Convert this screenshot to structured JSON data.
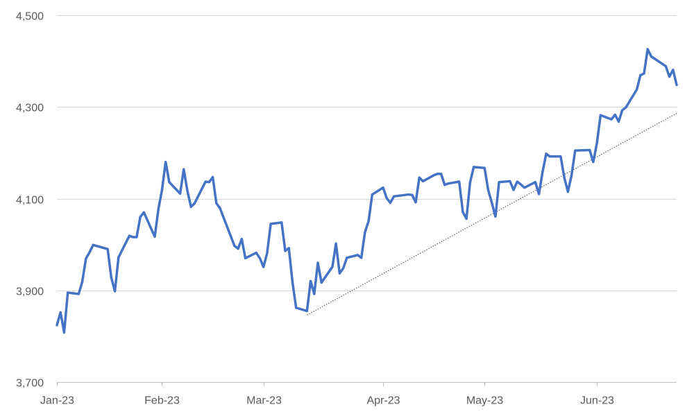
{
  "chart_data": {
    "type": "line",
    "title": "",
    "xlabel": "",
    "ylabel": "",
    "ylim": [
      3700,
      4500
    ],
    "yticks": [
      3700,
      3900,
      4100,
      4300,
      4500
    ],
    "ytick_labels": [
      "3,700",
      "3,900",
      "4,100",
      "4,300",
      "4,500"
    ],
    "xticks": [
      "2023-01-03",
      "2023-02-01",
      "2023-03-01",
      "2023-04-03",
      "2023-05-01",
      "2023-06-01"
    ],
    "xtick_labels": [
      "Jan-23",
      "Feb-23",
      "Mar-23",
      "Apr-23",
      "May-23",
      "Jun-23"
    ],
    "xlim": [
      "2023-01-03",
      "2023-06-23"
    ],
    "grid": {
      "horizontal": true,
      "vertical": false
    },
    "legend": "none",
    "series": [
      {
        "color": "#4472C4",
        "line_style": "solid",
        "points": [
          [
            "2023-01-03",
            3824
          ],
          [
            "2023-01-04",
            3852
          ],
          [
            "2023-01-05",
            3808
          ],
          [
            "2023-01-06",
            3895
          ],
          [
            "2023-01-09",
            3892
          ],
          [
            "2023-01-10",
            3919
          ],
          [
            "2023-01-11",
            3969
          ],
          [
            "2023-01-12",
            3983
          ],
          [
            "2023-01-13",
            3999
          ],
          [
            "2023-01-17",
            3990
          ],
          [
            "2023-01-18",
            3928
          ],
          [
            "2023-01-19",
            3898
          ],
          [
            "2023-01-20",
            3972
          ],
          [
            "2023-01-23",
            4019
          ],
          [
            "2023-01-24",
            4016
          ],
          [
            "2023-01-25",
            4016
          ],
          [
            "2023-01-26",
            4060
          ],
          [
            "2023-01-27",
            4070
          ],
          [
            "2023-01-30",
            4017
          ],
          [
            "2023-01-31",
            4077
          ],
          [
            "2023-02-01",
            4119
          ],
          [
            "2023-02-02",
            4180
          ],
          [
            "2023-02-03",
            4136
          ],
          [
            "2023-02-06",
            4111
          ],
          [
            "2023-02-07",
            4164
          ],
          [
            "2023-02-08",
            4117
          ],
          [
            "2023-02-09",
            4082
          ],
          [
            "2023-02-10",
            4090
          ],
          [
            "2023-02-13",
            4137
          ],
          [
            "2023-02-14",
            4136
          ],
          [
            "2023-02-15",
            4147
          ],
          [
            "2023-02-16",
            4090
          ],
          [
            "2023-02-17",
            4079
          ],
          [
            "2023-02-21",
            3997
          ],
          [
            "2023-02-22",
            3991
          ],
          [
            "2023-02-23",
            4012
          ],
          [
            "2023-02-24",
            3970
          ],
          [
            "2023-02-27",
            3982
          ],
          [
            "2023-02-28",
            3970
          ],
          [
            "2023-03-01",
            3951
          ],
          [
            "2023-03-02",
            3981
          ],
          [
            "2023-03-03",
            4045
          ],
          [
            "2023-03-06",
            4048
          ],
          [
            "2023-03-07",
            3986
          ],
          [
            "2023-03-08",
            3992
          ],
          [
            "2023-03-09",
            3918
          ],
          [
            "2023-03-10",
            3862
          ],
          [
            "2023-03-13",
            3855
          ],
          [
            "2023-03-14",
            3920
          ],
          [
            "2023-03-15",
            3892
          ],
          [
            "2023-03-16",
            3960
          ],
          [
            "2023-03-17",
            3917
          ],
          [
            "2023-03-20",
            3951
          ],
          [
            "2023-03-21",
            4002
          ],
          [
            "2023-03-22",
            3937
          ],
          [
            "2023-03-23",
            3948
          ],
          [
            "2023-03-24",
            3971
          ],
          [
            "2023-03-27",
            3977
          ],
          [
            "2023-03-28",
            3971
          ],
          [
            "2023-03-29",
            4027
          ],
          [
            "2023-03-30",
            4051
          ],
          [
            "2023-03-31",
            4109
          ],
          [
            "2023-04-03",
            4124
          ],
          [
            "2023-04-04",
            4101
          ],
          [
            "2023-04-05",
            4091
          ],
          [
            "2023-04-06",
            4105
          ],
          [
            "2023-04-10",
            4109
          ],
          [
            "2023-04-11",
            4108
          ],
          [
            "2023-04-12",
            4092
          ],
          [
            "2023-04-13",
            4146
          ],
          [
            "2023-04-14",
            4138
          ],
          [
            "2023-04-17",
            4151
          ],
          [
            "2023-04-18",
            4154
          ],
          [
            "2023-04-19",
            4154
          ],
          [
            "2023-04-20",
            4130
          ],
          [
            "2023-04-21",
            4133
          ],
          [
            "2023-04-24",
            4137
          ],
          [
            "2023-04-25",
            4071
          ],
          [
            "2023-04-26",
            4056
          ],
          [
            "2023-04-27",
            4135
          ],
          [
            "2023-04-28",
            4169
          ],
          [
            "2023-05-01",
            4167
          ],
          [
            "2023-05-02",
            4119
          ],
          [
            "2023-05-03",
            4091
          ],
          [
            "2023-05-04",
            4061
          ],
          [
            "2023-05-05",
            4136
          ],
          [
            "2023-05-08",
            4138
          ],
          [
            "2023-05-09",
            4119
          ],
          [
            "2023-05-10",
            4137
          ],
          [
            "2023-05-11",
            4131
          ],
          [
            "2023-05-12",
            4124
          ],
          [
            "2023-05-15",
            4136
          ],
          [
            "2023-05-16",
            4110
          ],
          [
            "2023-05-17",
            4158
          ],
          [
            "2023-05-18",
            4198
          ],
          [
            "2023-05-19",
            4192
          ],
          [
            "2023-05-22",
            4192
          ],
          [
            "2023-05-23",
            4146
          ],
          [
            "2023-05-24",
            4115
          ],
          [
            "2023-05-25",
            4151
          ],
          [
            "2023-05-26",
            4205
          ],
          [
            "2023-05-30",
            4206
          ],
          [
            "2023-05-31",
            4180
          ],
          [
            "2023-06-01",
            4221
          ],
          [
            "2023-06-02",
            4282
          ],
          [
            "2023-06-05",
            4273
          ],
          [
            "2023-06-06",
            4283
          ],
          [
            "2023-06-07",
            4268
          ],
          [
            "2023-06-08",
            4293
          ],
          [
            "2023-06-09",
            4299
          ],
          [
            "2023-06-12",
            4338
          ],
          [
            "2023-06-13",
            4369
          ],
          [
            "2023-06-14",
            4373
          ],
          [
            "2023-06-15",
            4426
          ],
          [
            "2023-06-16",
            4410
          ],
          [
            "2023-06-20",
            4389
          ],
          [
            "2023-06-21",
            4366
          ],
          [
            "2023-06-22",
            4381
          ],
          [
            "2023-06-23",
            4348
          ]
        ]
      }
    ],
    "trendline": {
      "color": "#404040",
      "line_style": "dotted",
      "points": [
        [
          "2023-03-13",
          3846
        ],
        [
          "2023-06-23",
          4286
        ]
      ]
    }
  }
}
